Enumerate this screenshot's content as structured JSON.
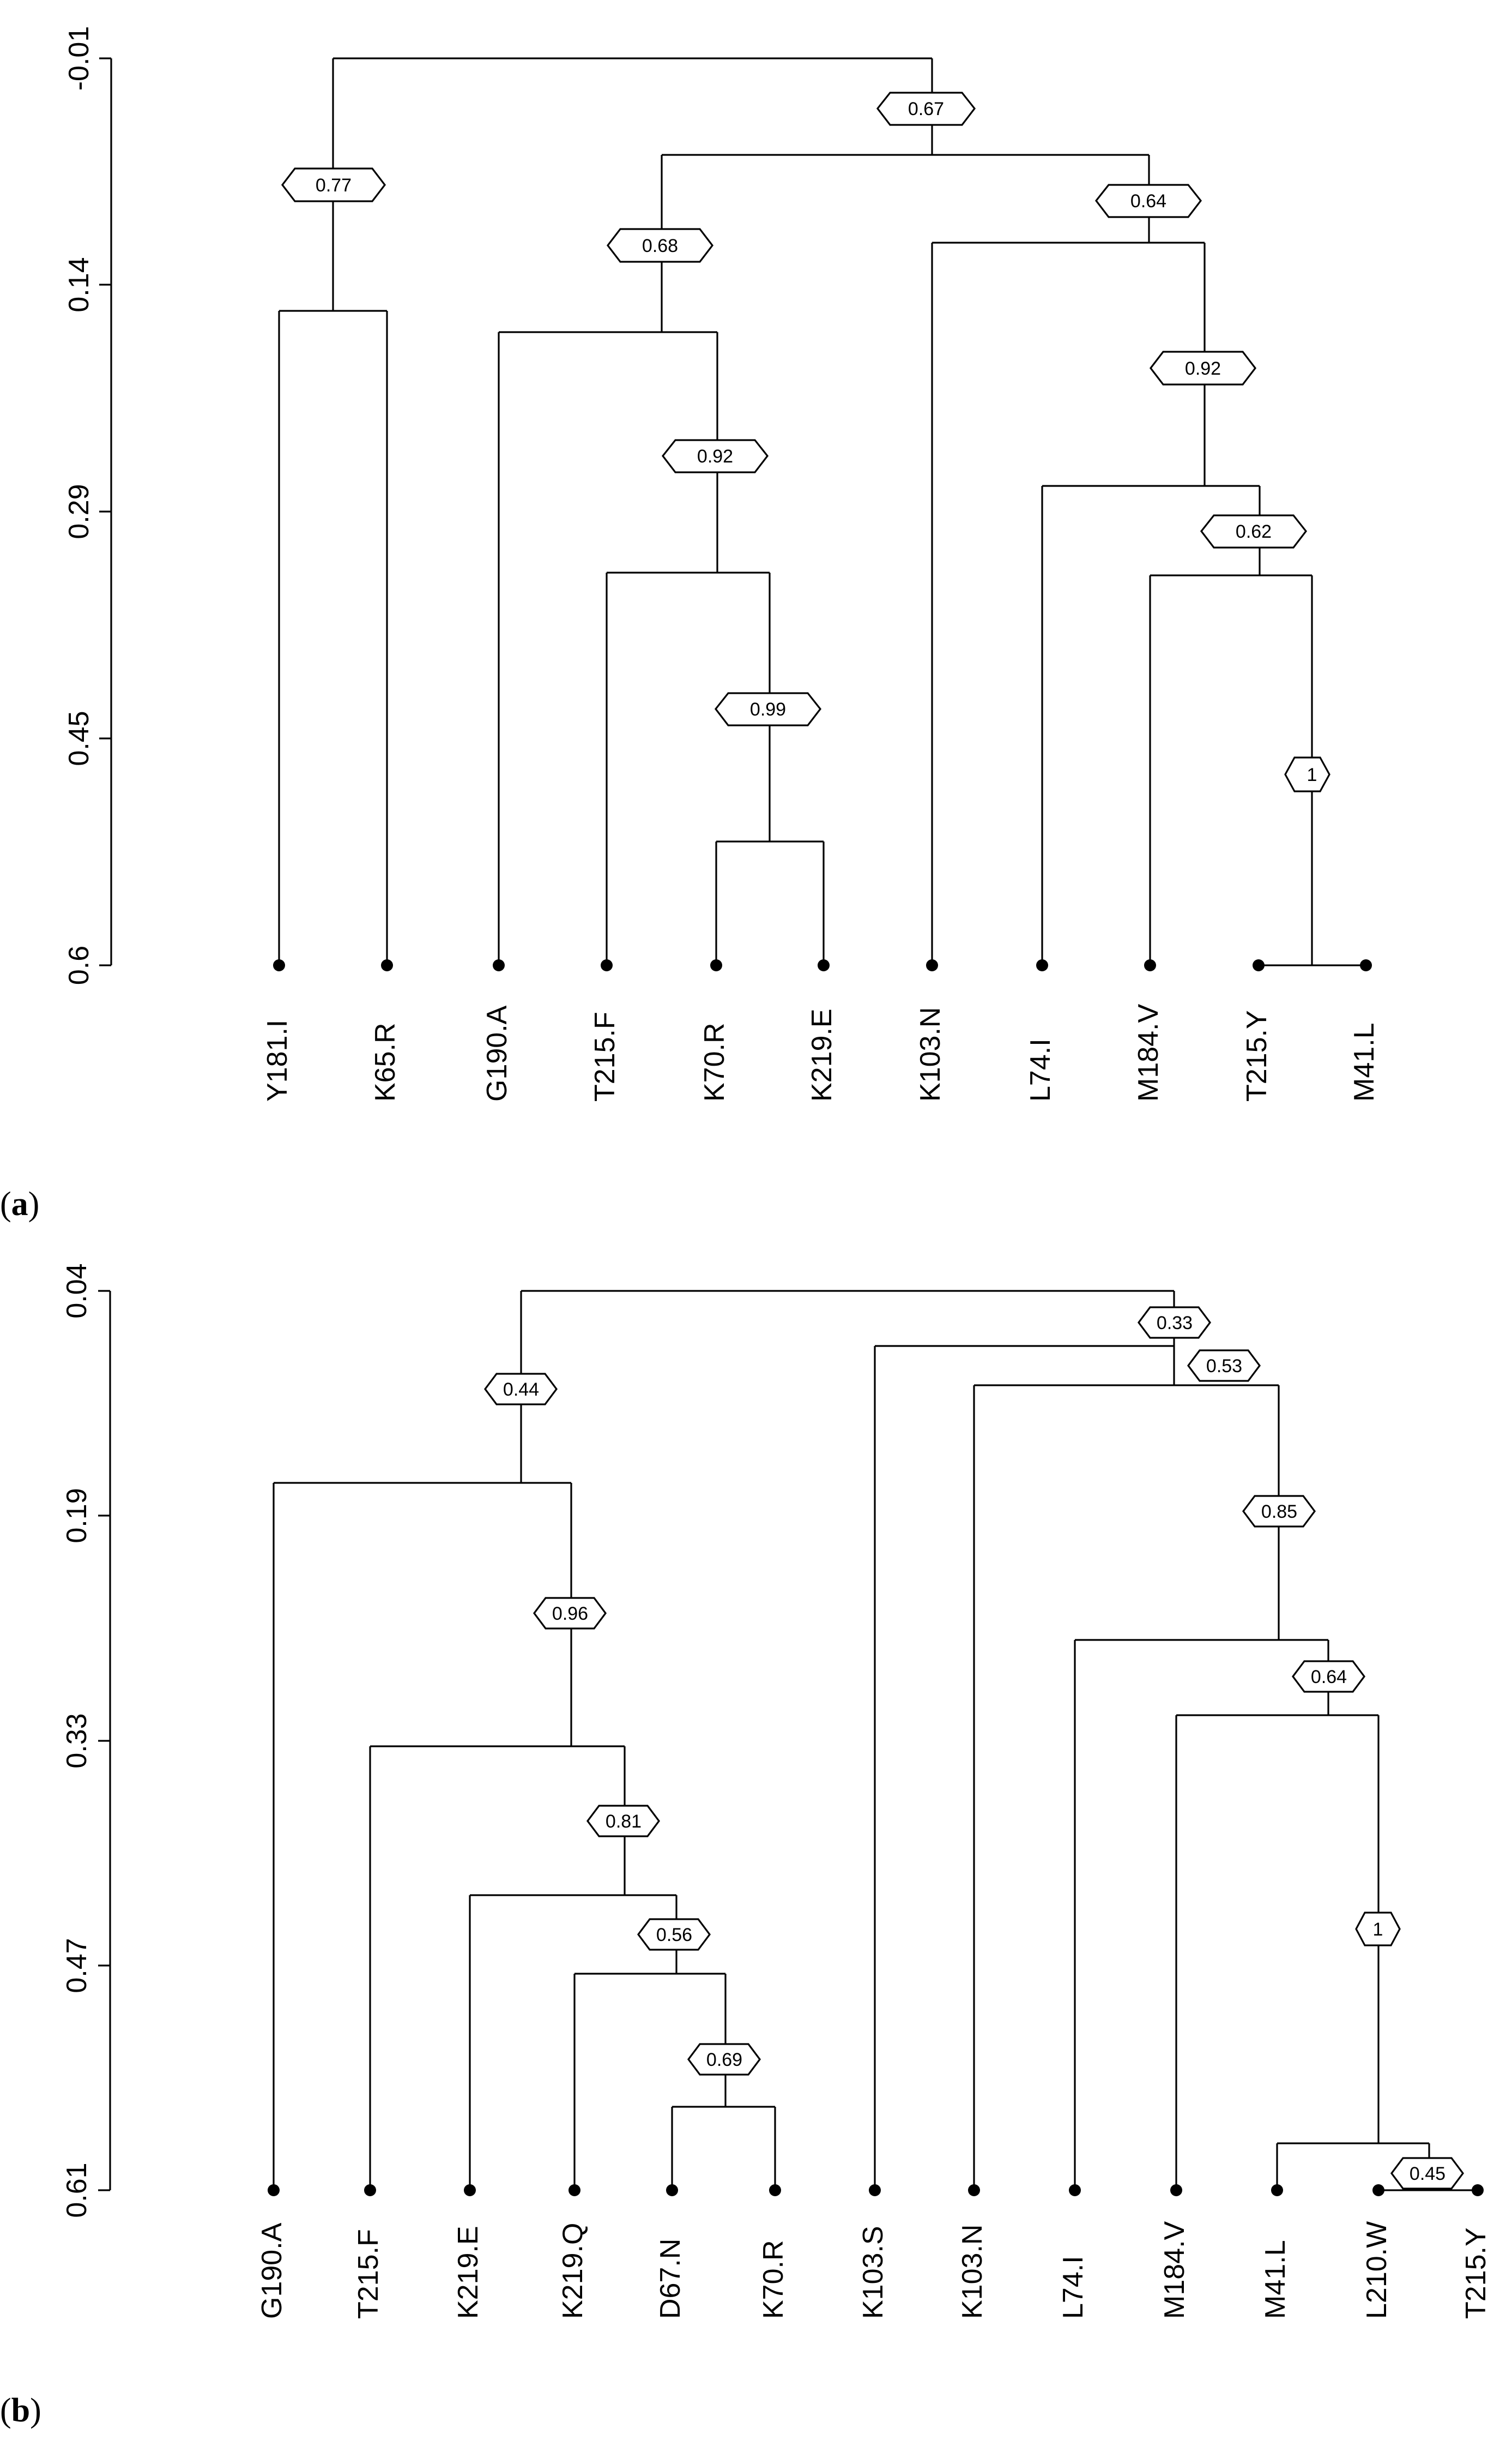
{
  "panels": [
    {
      "label_open": "(",
      "label_letter": "a",
      "label_close": ")",
      "ticks": [
        "-0.01",
        "0.14",
        "0.29",
        "0.45",
        "0.6"
      ],
      "leaves": [
        "Y181.I",
        "K65.R",
        "G190.A",
        "T215.F",
        "K70.R",
        "K219.E",
        "K103.N",
        "L74.I",
        "M184.V",
        "T215.Y",
        "M41.L"
      ],
      "badges": [
        "0.77",
        "0.67",
        "0.68",
        "0.64",
        "0.92",
        "0.92",
        "0.62",
        "0.99",
        "1"
      ]
    },
    {
      "label_open": "(",
      "label_letter": "b",
      "label_close": ")",
      "ticks": [
        "0.04",
        "0.19",
        "0.33",
        "0.47",
        "0.61"
      ],
      "leaves": [
        "G190.A",
        "T215.F",
        "K219.E",
        "K219.Q",
        "D67.N",
        "K70.R",
        "K103.S",
        "K103.N",
        "L74.I",
        "M184.V",
        "M41.L",
        "L210.W",
        "T215.Y"
      ],
      "badges": [
        "0.33",
        "0.44",
        "0.53",
        "0.85",
        "0.96",
        "0.64",
        "0.81",
        "0.56",
        "0.69",
        "1",
        "0.45"
      ]
    }
  ]
}
